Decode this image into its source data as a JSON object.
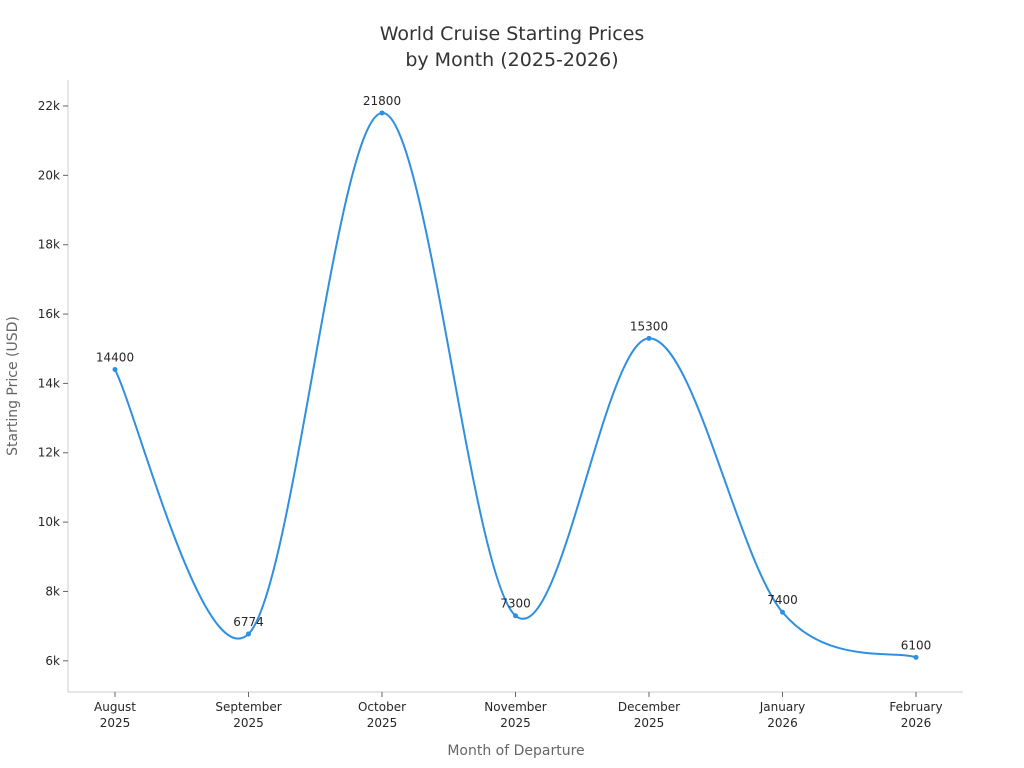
{
  "chart_data": {
    "type": "line",
    "title": "World Cruise Starting Prices\nby Month (2025-2026)",
    "x_label": "Month of Departure",
    "y_label": "Starting Price (USD)",
    "categories": [
      "August\n2025",
      "September\n2025",
      "October\n2025",
      "November\n2025",
      "December\n2025",
      "January\n2026",
      "February\n2026"
    ],
    "series": [
      {
        "name": "Starting Price",
        "color": "#2f8fe0",
        "values": [
          14400,
          6774,
          21800,
          7300,
          15300,
          7400,
          6100
        ]
      }
    ],
    "ylim": [
      5100,
      22750
    ],
    "yticks": [
      {
        "value": 6000,
        "label": "6k"
      },
      {
        "value": 8000,
        "label": "8k"
      },
      {
        "value": 10000,
        "label": "10k"
      },
      {
        "value": 12000,
        "label": "12k"
      },
      {
        "value": 14000,
        "label": "14k"
      },
      {
        "value": 16000,
        "label": "16k"
      },
      {
        "value": 18000,
        "label": "18k"
      },
      {
        "value": 20000,
        "label": "20k"
      },
      {
        "value": 22000,
        "label": "22k"
      }
    ],
    "smooth": true
  }
}
